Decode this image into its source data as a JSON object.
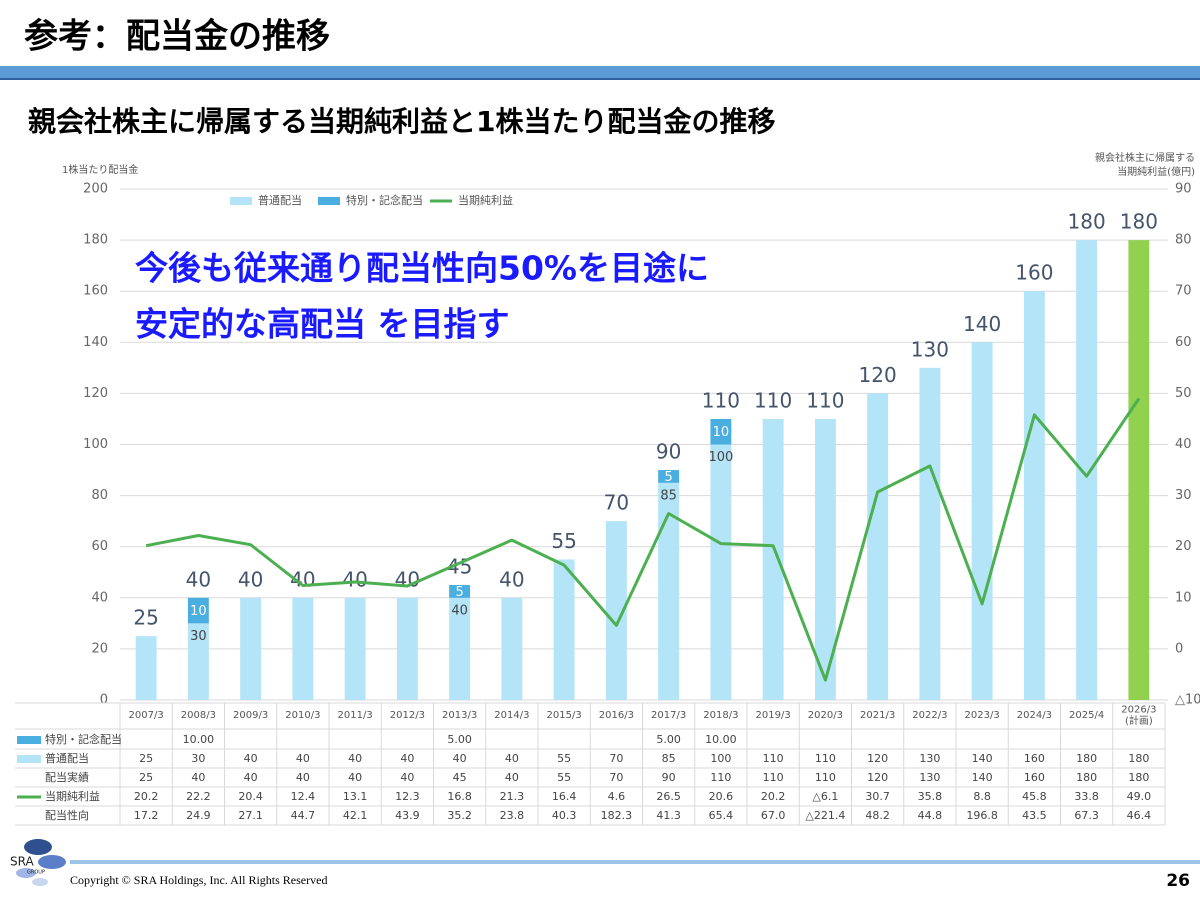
{
  "page": {
    "title": "参考：配当金の推移",
    "subtitle": "親会社株主に帰属する当期純利益と1株当たり配当金の推移"
  },
  "logo": {
    "text": "SRA",
    "sub": "GROUP"
  },
  "footer": {
    "copyright": "Copyright © SRA Holdings, Inc.  All Rights Reserved",
    "page_number": 26
  },
  "chart_data": {
    "type": "bar",
    "ylabel": "1株当たり配当金",
    "y2label": [
      "親会社株主に帰属する",
      "当期純利益(億円)"
    ],
    "annotation": [
      "今後も従来通り配当性向50%を目途に",
      "安定的な高配当 を目指す"
    ],
    "categories": [
      "2007/3",
      "2008/3",
      "2009/3",
      "2010/3",
      "2011/3",
      "2012/3",
      "2013/3",
      "2014/3",
      "2015/3",
      "2016/3",
      "2017/3",
      "2018/3",
      "2019/3",
      "2020/3",
      "2021/3",
      "2022/3",
      "2023/3",
      "2024/3",
      "2025/4",
      "2026/3\n(計画)"
    ],
    "ylim": [
      0,
      200
    ],
    "yticks": [
      0,
      20,
      40,
      60,
      80,
      100,
      120,
      140,
      160,
      180,
      200
    ],
    "y2lim": [
      -10,
      90
    ],
    "y2ticks": [
      {
        "value": -10,
        "label": "△10"
      },
      0,
      10,
      20,
      30,
      40,
      50,
      60,
      70,
      80,
      90
    ],
    "grid": true,
    "plan_bar_color": "#92d050",
    "series": [
      {
        "name": "普通配当",
        "color": "#b4e4f8",
        "values": [
          25,
          30,
          40,
          40,
          40,
          40,
          40,
          40,
          55,
          70,
          85,
          100,
          110,
          110,
          120,
          130,
          140,
          160,
          180,
          180
        ]
      },
      {
        "name": "特別・記念配当",
        "color": "#4aaee0",
        "values": [
          null,
          10,
          null,
          null,
          null,
          null,
          5,
          null,
          null,
          null,
          5,
          10,
          null,
          null,
          null,
          null,
          null,
          null,
          null,
          null
        ],
        "value_labels": [
          null,
          "10.00",
          null,
          null,
          null,
          null,
          "5.00",
          null,
          null,
          null,
          "5.00",
          "10.00",
          null,
          null,
          null,
          null,
          null,
          null,
          null,
          null
        ]
      },
      {
        "name": "当期純利益",
        "type": "line",
        "axis": "y2",
        "color": "#4caf50",
        "values": [
          20.2,
          22.2,
          20.4,
          12.4,
          13.1,
          12.3,
          16.8,
          21.3,
          16.4,
          4.6,
          26.5,
          20.6,
          20.2,
          -6.1,
          30.7,
          35.8,
          8.8,
          45.8,
          33.8,
          49.0
        ],
        "value_labels": [
          "20.2",
          "22.2",
          "20.4",
          "12.4",
          "13.1",
          "12.3",
          "16.8",
          "21.3",
          "16.4",
          "4.6",
          "26.5",
          "20.6",
          "20.2",
          "△6.1",
          "30.7",
          "35.8",
          "8.8",
          "45.8",
          "33.8",
          "49.0"
        ]
      }
    ],
    "totals": {
      "name": "配当実績",
      "values": [
        25,
        40,
        40,
        40,
        40,
        40,
        45,
        40,
        55,
        70,
        90,
        110,
        110,
        110,
        120,
        130,
        140,
        160,
        180,
        180
      ]
    },
    "payout": {
      "name": "配当性向",
      "values": [
        17.2,
        24.9,
        27.1,
        44.7,
        42.1,
        43.9,
        35.2,
        23.8,
        40.3,
        182.3,
        41.3,
        65.4,
        67.0,
        -221.4,
        48.2,
        44.8,
        196.8,
        43.5,
        67.3,
        46.4
      ],
      "value_labels": [
        "17.2",
        "24.9",
        "27.1",
        "44.7",
        "42.1",
        "43.9",
        "35.2",
        "23.8",
        "40.3",
        "182.3",
        "41.3",
        "65.4",
        "67.0",
        "△221.4",
        "48.2",
        "44.8",
        "196.8",
        "43.5",
        "67.3",
        "46.4"
      ]
    }
  }
}
